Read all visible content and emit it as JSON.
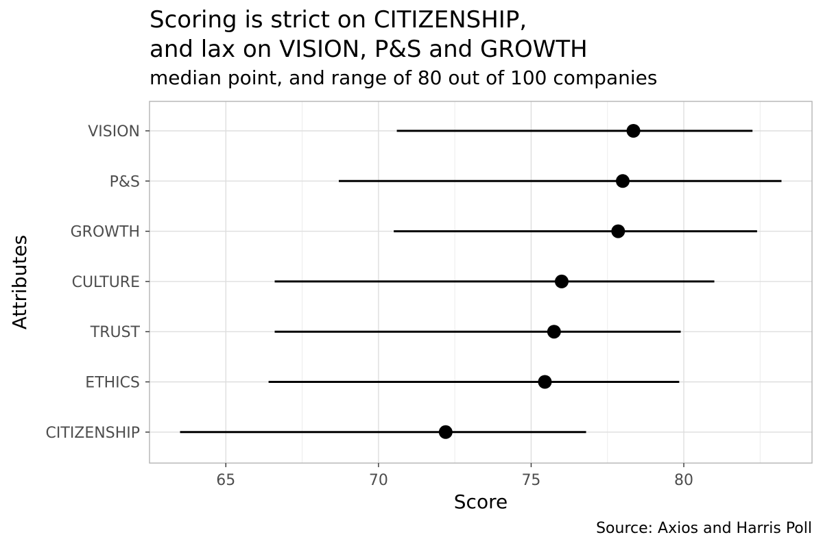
{
  "chart_data": {
    "type": "dot-range",
    "title_lines": [
      "Scoring is strict on CITIZENSHIP,",
      "and lax on VISION, P&S and GROWTH"
    ],
    "subtitle": "median point, and range of 80 out of 100 companies",
    "caption": "Source: Axios and Harris Poll",
    "xlabel": "Score",
    "ylabel": "Attributes",
    "xlim": [
      62.5,
      84.2
    ],
    "x_ticks": [
      65,
      70,
      75,
      80
    ],
    "grid": true,
    "categories": [
      "VISION",
      "P&S",
      "GROWTH",
      "CULTURE",
      "TRUST",
      "ETHICS",
      "CITIZENSHIP"
    ],
    "median": [
      78.35,
      78.0,
      77.85,
      76.0,
      75.75,
      75.45,
      72.2
    ],
    "range_low": [
      70.6,
      68.7,
      70.5,
      66.6,
      66.6,
      66.4,
      63.5
    ],
    "range_high": [
      82.25,
      83.2,
      82.4,
      81.0,
      79.9,
      79.85,
      76.8
    ]
  }
}
